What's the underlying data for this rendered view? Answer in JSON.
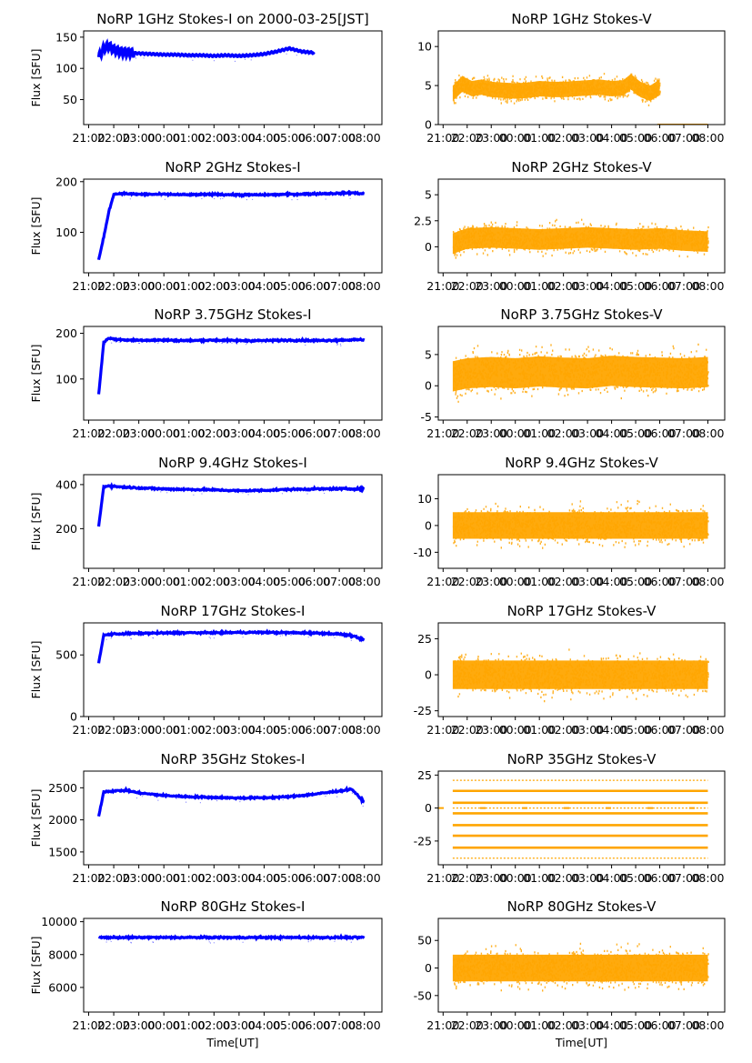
{
  "figure": {
    "x_ticks": [
      "21:00",
      "22:00",
      "23:00",
      "00:00",
      "01:00",
      "02:00",
      "03:00",
      "04:00",
      "05:00",
      "06:00",
      "07:00",
      "08:00"
    ],
    "xlabel": "Time[UT]",
    "ylabel": "Flux [SFU]",
    "colors": {
      "stokes_i": "#0000ff",
      "stokes_v": "#ffa500"
    },
    "time_range_hours": [
      20.8,
      32.7
    ]
  },
  "chart_data": [
    {
      "id": "i1",
      "type": "line",
      "title": "NoRP 1GHz Stokes-I on 2000-03-25[JST]",
      "ylabel": "Flux [SFU]",
      "ylim": [
        10,
        160
      ],
      "yticks": [
        50,
        100,
        150
      ],
      "series": [
        {
          "x": [
            21.4,
            21.6,
            21.8,
            22.0,
            22.3,
            22.6,
            23.0,
            23.5,
            24.0,
            24.5,
            25.0,
            25.5,
            26.0,
            26.5,
            27.0,
            27.5,
            28.0,
            28.5,
            29.0,
            29.5,
            30.0
          ],
          "values": [
            118,
            132,
            136,
            130,
            126,
            125,
            124,
            123,
            122,
            122,
            121,
            121,
            120,
            121,
            120,
            121,
            123,
            127,
            132,
            127,
            125
          ]
        }
      ]
    },
    {
      "id": "v1",
      "type": "scatter",
      "title": "NoRP 1GHz Stokes-V",
      "ylim": [
        0,
        12
      ],
      "yticks": [
        0,
        5,
        10
      ],
      "series": [
        {
          "x": [
            21.4,
            21.8,
            22.2,
            22.6,
            23.0,
            23.5,
            24.0,
            24.5,
            25.0,
            25.5,
            26.0,
            26.5,
            27.0,
            27.5,
            28.0,
            28.5,
            28.8,
            29.2,
            29.6,
            30.0
          ],
          "values": [
            4,
            5.2,
            4.6,
            4.8,
            4.5,
            4.4,
            4.3,
            4.4,
            4.6,
            4.5,
            4.5,
            4.6,
            4.7,
            4.8,
            4.6,
            4.7,
            5.5,
            4.5,
            4.0,
            4.8
          ]
        }
      ]
    },
    {
      "id": "i2",
      "type": "line",
      "title": "NoRP 2GHz Stokes-I",
      "ylim": [
        20,
        205
      ],
      "yticks": [
        100,
        200
      ],
      "series": [
        {
          "x": [
            21.4,
            21.6,
            21.8,
            22.0,
            22.3,
            22.6,
            23.0,
            24.0,
            25.0,
            26.0,
            27.0,
            28.0,
            29.0,
            30.0,
            31.0,
            31.5,
            32.0
          ],
          "values": [
            45,
            90,
            140,
            175,
            177,
            176,
            175,
            175,
            174,
            175,
            174,
            174,
            175,
            176,
            177,
            178,
            176
          ]
        }
      ]
    },
    {
      "id": "v2",
      "type": "scatter",
      "title": "NoRP 2GHz Stokes-V",
      "ylim": [
        -2.5,
        6.5
      ],
      "yticks": [
        0,
        2.5,
        5
      ],
      "series": [
        {
          "x": [
            21.4,
            22.0,
            23.0,
            24.0,
            25.0,
            26.0,
            27.0,
            28.0,
            29.0,
            30.0,
            31.0,
            32.0
          ],
          "values": [
            0.3,
            0.8,
            0.9,
            0.8,
            0.7,
            0.8,
            0.9,
            0.8,
            0.7,
            0.8,
            0.6,
            0.5
          ]
        }
      ]
    },
    {
      "id": "i3",
      "type": "line",
      "title": "NoRP 3.75GHz Stokes-I",
      "ylim": [
        10,
        215
      ],
      "yticks": [
        100,
        200
      ],
      "series": [
        {
          "x": [
            21.4,
            21.6,
            21.8,
            22.0,
            22.3,
            22.6,
            23.0,
            24.0,
            25.0,
            26.0,
            27.0,
            28.0,
            29.0,
            30.0,
            31.0,
            32.0
          ],
          "values": [
            65,
            180,
            190,
            187,
            186,
            185,
            185,
            185,
            184,
            185,
            184,
            184,
            185,
            184,
            185,
            186
          ]
        }
      ]
    },
    {
      "id": "v3",
      "type": "scatter",
      "title": "NoRP 3.75GHz Stokes-V",
      "ylim": [
        -5.5,
        9.5
      ],
      "yticks": [
        -5,
        0,
        5
      ],
      "series": [
        {
          "x": [
            21.4,
            22.0,
            23.0,
            24.0,
            25.0,
            26.0,
            27.0,
            28.0,
            29.0,
            30.0,
            31.0,
            32.0
          ],
          "values": [
            1.5,
            2,
            2.2,
            2,
            2.3,
            2.1,
            2,
            2.4,
            2.2,
            2.1,
            2,
            2.2
          ]
        }
      ]
    },
    {
      "id": "i4",
      "type": "line",
      "title": "NoRP 9.4GHz Stokes-I",
      "ylim": [
        20,
        445
      ],
      "yticks": [
        200,
        400
      ],
      "series": [
        {
          "x": [
            21.4,
            21.6,
            21.8,
            22.0,
            22.5,
            23.0,
            24.0,
            25.0,
            26.0,
            27.0,
            28.0,
            29.0,
            30.0,
            31.0,
            32.0
          ],
          "values": [
            210,
            390,
            395,
            392,
            388,
            385,
            380,
            378,
            376,
            372,
            374,
            378,
            380,
            381,
            380
          ]
        }
      ]
    },
    {
      "id": "v4",
      "type": "scatter",
      "title": "NoRP 9.4GHz Stokes-V",
      "ylim": [
        -16,
        19
      ],
      "yticks": [
        -10,
        0,
        10
      ],
      "series": [
        {
          "x": [
            21.4,
            22.0,
            23.0,
            24.0,
            25.0,
            26.0,
            27.0,
            28.0,
            29.0,
            30.0,
            31.0,
            32.0
          ],
          "values": [
            0,
            0,
            0,
            0,
            0,
            0,
            0,
            0,
            0,
            0,
            0,
            0
          ]
        }
      ]
    },
    {
      "id": "i5",
      "type": "line",
      "title": "NoRP 17GHz Stokes-I",
      "ylim": [
        0,
        760
      ],
      "yticks": [
        0,
        500
      ],
      "series": [
        {
          "x": [
            21.4,
            21.6,
            22.0,
            23.0,
            24.0,
            25.0,
            26.0,
            27.0,
            28.0,
            29.0,
            30.0,
            31.0,
            31.5,
            32.0
          ],
          "values": [
            430,
            660,
            670,
            675,
            678,
            680,
            680,
            682,
            683,
            680,
            678,
            670,
            655,
            620
          ]
        }
      ]
    },
    {
      "id": "v5",
      "type": "scatter",
      "title": "NoRP 17GHz Stokes-V",
      "ylim": [
        -29,
        36
      ],
      "yticks": [
        -25,
        0,
        25
      ],
      "series": [
        {
          "x": [
            21.4,
            22.0,
            23.0,
            24.0,
            25.0,
            26.0,
            27.0,
            28.0,
            29.0,
            30.0,
            31.0,
            32.0
          ],
          "values": [
            0,
            0,
            0,
            0,
            0,
            0,
            0,
            0,
            0,
            0,
            0,
            0
          ]
        }
      ]
    },
    {
      "id": "i6",
      "type": "line",
      "title": "NoRP 35GHz Stokes-I",
      "ylim": [
        1300,
        2760
      ],
      "yticks": [
        1500,
        2000,
        2500
      ],
      "series": [
        {
          "x": [
            21.4,
            21.6,
            22.0,
            22.5,
            23.0,
            24.0,
            25.0,
            26.0,
            27.0,
            28.0,
            29.0,
            30.0,
            31.0,
            31.5,
            31.8,
            32.0
          ],
          "values": [
            2050,
            2440,
            2450,
            2460,
            2420,
            2380,
            2360,
            2350,
            2340,
            2345,
            2360,
            2400,
            2450,
            2480,
            2350,
            2280
          ]
        }
      ]
    },
    {
      "id": "v6",
      "type": "scatter",
      "title": "NoRP 35GHz Stokes-V",
      "ylim": [
        -43,
        28
      ],
      "yticks": [
        -25,
        0,
        25
      ],
      "levels": [
        21,
        13,
        4,
        0,
        -4,
        -13,
        -21,
        -30,
        -38
      ]
    },
    {
      "id": "i7",
      "type": "line",
      "title": "NoRP 80GHz Stokes-I",
      "ylim": [
        4500,
        10200
      ],
      "yticks": [
        6000,
        8000,
        10000
      ],
      "series": [
        {
          "x": [
            21.4,
            32.0
          ],
          "values": [
            9040,
            9040
          ]
        }
      ]
    },
    {
      "id": "v7",
      "type": "scatter",
      "title": "NoRP 80GHz Stokes-V",
      "ylim": [
        -80,
        90
      ],
      "yticks": [
        -50,
        0,
        50
      ],
      "series": [
        {
          "x": [
            21.4,
            22.0,
            23.0,
            24.0,
            25.0,
            26.0,
            27.0,
            28.0,
            29.0,
            30.0,
            31.0,
            32.0
          ],
          "values": [
            0,
            0,
            0,
            0,
            0,
            0,
            0,
            0,
            0,
            0,
            0,
            0
          ]
        }
      ]
    }
  ]
}
